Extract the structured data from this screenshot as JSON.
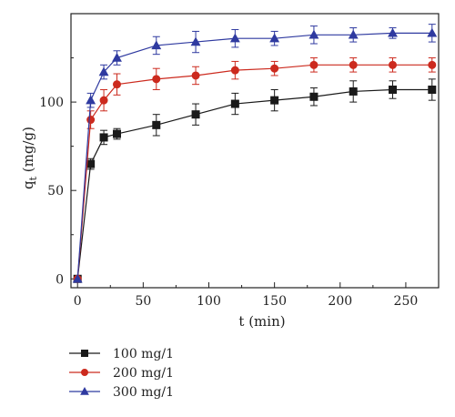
{
  "chart_data": {
    "type": "line",
    "title": "",
    "xlabel": "t (min)",
    "ylabel_main": "q",
    "ylabel_sub": "t",
    "ylabel_unit": " (mg/g)",
    "xlim": [
      -5,
      275
    ],
    "ylim": [
      -5,
      150
    ],
    "xticks": [
      0,
      50,
      100,
      150,
      200,
      250
    ],
    "yticks": [
      0,
      50,
      100
    ],
    "grid": false,
    "legend_position": "bottom-left, below plot",
    "x": [
      0,
      10,
      20,
      30,
      60,
      90,
      120,
      150,
      180,
      210,
      240,
      270
    ],
    "series": [
      {
        "name": "100 mg/1",
        "color": "#1a1a1a",
        "marker": "square",
        "values": [
          0,
          65,
          80,
          82,
          87,
          93,
          99,
          101,
          103,
          106,
          107,
          107
        ],
        "errors": [
          0,
          3,
          4,
          3,
          6,
          6,
          6,
          6,
          5,
          6,
          5,
          6
        ]
      },
      {
        "name": "200 mg/1",
        "color": "#cc2a1e",
        "marker": "circle",
        "values": [
          0,
          90,
          101,
          110,
          113,
          115,
          118,
          119,
          121,
          121,
          121,
          121
        ],
        "errors": [
          0,
          5,
          6,
          6,
          6,
          5,
          5,
          4,
          4,
          4,
          4,
          4
        ]
      },
      {
        "name": "300 mg/1",
        "color": "#2f3aa0",
        "marker": "triangle",
        "values": [
          0,
          101,
          117,
          125,
          132,
          134,
          136,
          136,
          138,
          138,
          139,
          139
        ],
        "errors": [
          0,
          4,
          4,
          4,
          5,
          6,
          5,
          4,
          5,
          4,
          3,
          5
        ]
      }
    ]
  }
}
